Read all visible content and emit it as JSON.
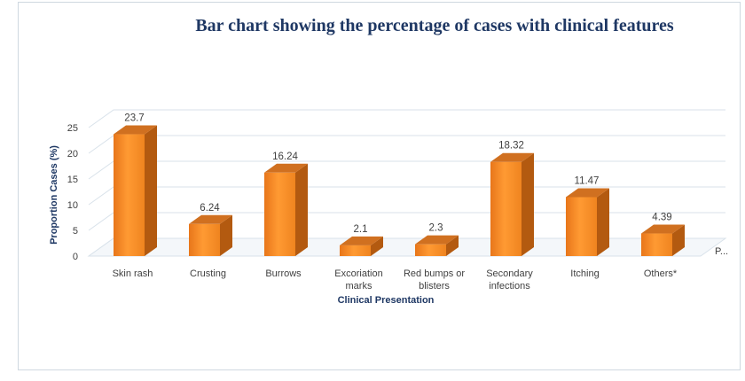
{
  "chart_data": {
    "type": "bar",
    "title": "Bar chart showing the percentage of cases with clinical features",
    "xlabel": "Clinical Presentation",
    "ylabel": "Proportion Cases (%)",
    "categories": [
      [
        "Skin rash"
      ],
      [
        "Crusting"
      ],
      [
        "Burrows"
      ],
      [
        "Excoriation",
        "marks"
      ],
      [
        "Red bumps or",
        "blisters"
      ],
      [
        "Secondary",
        "infections"
      ],
      [
        "Itching"
      ],
      [
        "Others*"
      ]
    ],
    "values": [
      23.7,
      6.24,
      16.24,
      2.1,
      2.3,
      18.32,
      11.47,
      4.39
    ],
    "data_labels": [
      "23.7",
      "6.24",
      "16.24",
      "2.1",
      "2.3",
      "18.32",
      "11.47",
      "4.39"
    ],
    "yticks": [
      0,
      5,
      10,
      15,
      20,
      25
    ],
    "ylim": [
      0,
      28
    ],
    "grid": true,
    "bar_color": "#f28c28",
    "legend_stub": "P..."
  }
}
